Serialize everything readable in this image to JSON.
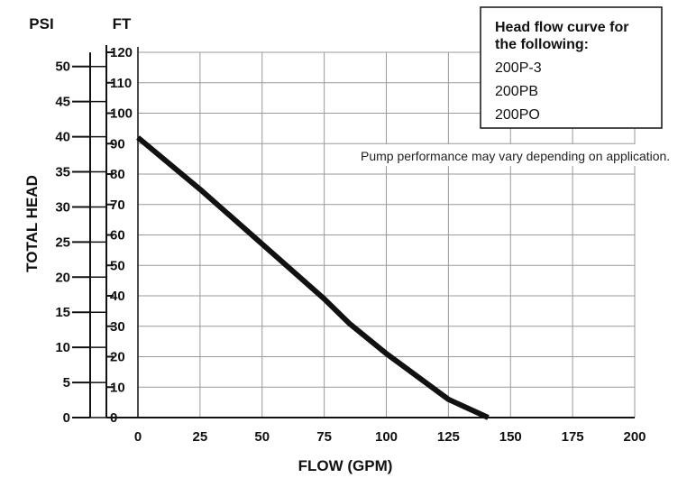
{
  "chart_data": {
    "type": "line",
    "xlabel": "FLOW (GPM)",
    "ylabel": "TOTAL HEAD",
    "x_ticks": [
      0,
      25,
      50,
      75,
      100,
      125,
      150,
      175,
      200
    ],
    "xlim": [
      0,
      200
    ],
    "y_left_unit": "PSI",
    "y_left_ticks": [
      0,
      5,
      10,
      15,
      20,
      25,
      30,
      35,
      40,
      45,
      50
    ],
    "y_left_lim": [
      0,
      52
    ],
    "y_right_unit": "FT",
    "y_right_ticks": [
      0,
      10,
      20,
      30,
      40,
      50,
      60,
      70,
      80,
      90,
      100,
      110,
      120
    ],
    "ylim": [
      0,
      120
    ],
    "grid": true,
    "legend_box": {
      "title_lines": [
        "Head flow curve for",
        "the following:"
      ],
      "items": [
        "200P-3",
        "200PB",
        "200PO"
      ],
      "placement": "top-right"
    },
    "annotation": "Pump performance may vary depending on application.",
    "series": [
      {
        "x": [
          0,
          25,
          50,
          75,
          85,
          100,
          125,
          141
        ],
        "y": [
          92,
          75,
          57,
          39,
          31,
          21,
          6,
          0
        ],
        "color": "#111111"
      }
    ]
  }
}
